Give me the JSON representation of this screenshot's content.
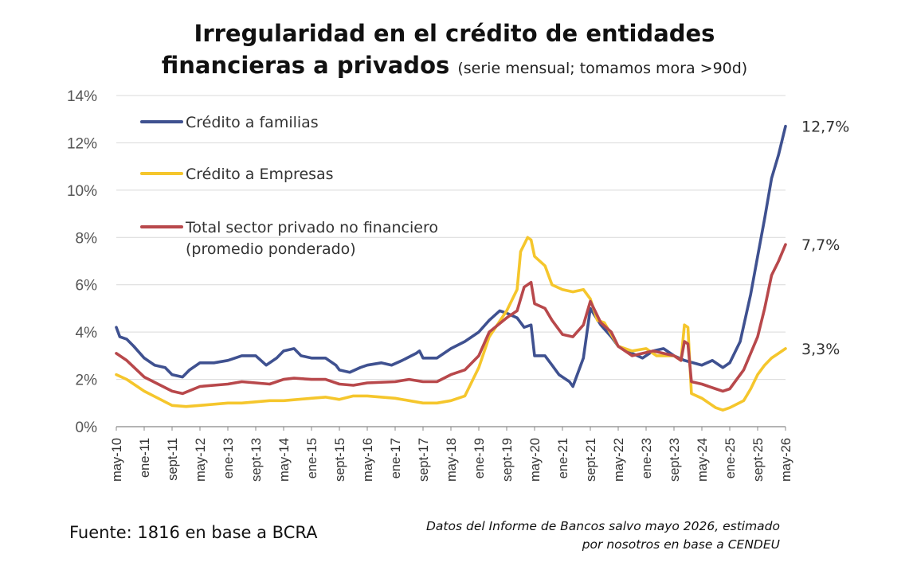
{
  "header": {
    "title_line1": "Irregularidad en el crédito de entidades",
    "title_line2": "financieras a privados",
    "subtitle": "(serie mensual; tomamos mora >90d)"
  },
  "footer": {
    "source": "Fuente: 1816 en base a BCRA",
    "note_line1": "Datos del Informe de Bancos salvo mayo 2026, estimado",
    "note_line2": "por nosotros en base a CENDEU"
  },
  "chart_data": {
    "type": "line",
    "x_start": "may-10",
    "x_end": "may-26",
    "y_ticks": [
      "0%",
      "2%",
      "4%",
      "6%",
      "8%",
      "10%",
      "12%",
      "14%"
    ],
    "ylim": [
      0,
      14
    ],
    "x_tick_labels": [
      "may-10",
      "ene-11",
      "sept-11",
      "may-12",
      "ene-13",
      "sept-13",
      "may-14",
      "ene-15",
      "sept-15",
      "may-16",
      "ene-17",
      "sept-17",
      "may-18",
      "ene-19",
      "sept-19",
      "may-20",
      "ene-21",
      "sept-21",
      "may-22",
      "ene-23",
      "sept-23",
      "may-24",
      "ene-25",
      "sept-25",
      "may-26"
    ],
    "grid": "horizontal",
    "legend_placement": "top-left",
    "series": [
      {
        "name": "Crédito a familias",
        "color": "#3f5190",
        "end_label": "12,7%",
        "points": [
          [
            "may-10",
            4.2
          ],
          [
            "jun-10",
            3.8
          ],
          [
            "ago-10",
            3.7
          ],
          [
            "oct-10",
            3.4
          ],
          [
            "ene-11",
            2.9
          ],
          [
            "abr-11",
            2.6
          ],
          [
            "jul-11",
            2.5
          ],
          [
            "sept-11",
            2.2
          ],
          [
            "dic-11",
            2.1
          ],
          [
            "feb-12",
            2.4
          ],
          [
            "may-12",
            2.7
          ],
          [
            "sept-12",
            2.7
          ],
          [
            "ene-13",
            2.8
          ],
          [
            "may-13",
            3.0
          ],
          [
            "sept-13",
            3.0
          ],
          [
            "dic-13",
            2.6
          ],
          [
            "mar-14",
            2.9
          ],
          [
            "may-14",
            3.2
          ],
          [
            "ago-14",
            3.3
          ],
          [
            "oct-14",
            3.0
          ],
          [
            "ene-15",
            2.9
          ],
          [
            "may-15",
            2.9
          ],
          [
            "ago-15",
            2.6
          ],
          [
            "sept-15",
            2.4
          ],
          [
            "dic-15",
            2.3
          ],
          [
            "mar-16",
            2.5
          ],
          [
            "may-16",
            2.6
          ],
          [
            "sept-16",
            2.7
          ],
          [
            "dic-16",
            2.6
          ],
          [
            "mar-17",
            2.8
          ],
          [
            "jul-17",
            3.1
          ],
          [
            "ago-17",
            3.2
          ],
          [
            "sept-17",
            2.9
          ],
          [
            "ene-18",
            2.9
          ],
          [
            "may-18",
            3.3
          ],
          [
            "sept-18",
            3.6
          ],
          [
            "ene-19",
            4.0
          ],
          [
            "abr-19",
            4.5
          ],
          [
            "jul-19",
            4.9
          ],
          [
            "sept-19",
            4.8
          ],
          [
            "dic-19",
            4.6
          ],
          [
            "feb-20",
            4.2
          ],
          [
            "abr-20",
            4.3
          ],
          [
            "may-20",
            3.0
          ],
          [
            "ago-20",
            3.0
          ],
          [
            "oct-20",
            2.6
          ],
          [
            "dic-20",
            2.2
          ],
          [
            "mar-21",
            1.9
          ],
          [
            "abr-21",
            1.7
          ],
          [
            "jul-21",
            2.9
          ],
          [
            "sept-21",
            5.0
          ],
          [
            "dic-21",
            4.3
          ],
          [
            "mar-22",
            3.8
          ],
          [
            "may-22",
            3.4
          ],
          [
            "sept-22",
            3.1
          ],
          [
            "dic-22",
            2.9
          ],
          [
            "mar-23",
            3.2
          ],
          [
            "jun-23",
            3.3
          ],
          [
            "sept-23",
            3.0
          ],
          [
            "dic-23",
            2.8
          ],
          [
            "may-24",
            2.6
          ],
          [
            "ago-24",
            2.8
          ],
          [
            "nov-24",
            2.5
          ],
          [
            "ene-25",
            2.7
          ],
          [
            "abr-25",
            3.6
          ],
          [
            "jul-25",
            5.6
          ],
          [
            "sept-25",
            7.2
          ],
          [
            "nov-25",
            8.8
          ],
          [
            "ene-26",
            10.5
          ],
          [
            "mar-26",
            11.5
          ],
          [
            "may-26",
            12.7
          ]
        ]
      },
      {
        "name": "Crédito a Empresas",
        "color": "#f5c62c",
        "end_label": "3,3%",
        "points": [
          [
            "may-10",
            2.2
          ],
          [
            "ago-10",
            2.0
          ],
          [
            "ene-11",
            1.5
          ],
          [
            "may-11",
            1.2
          ],
          [
            "sept-11",
            0.9
          ],
          [
            "ene-12",
            0.85
          ],
          [
            "may-12",
            0.9
          ],
          [
            "ene-13",
            1.0
          ],
          [
            "may-13",
            1.0
          ],
          [
            "ene-14",
            1.1
          ],
          [
            "may-14",
            1.1
          ],
          [
            "ene-15",
            1.2
          ],
          [
            "may-15",
            1.25
          ],
          [
            "sept-15",
            1.15
          ],
          [
            "ene-16",
            1.3
          ],
          [
            "may-16",
            1.3
          ],
          [
            "ene-17",
            1.2
          ],
          [
            "may-17",
            1.1
          ],
          [
            "sept-17",
            1.0
          ],
          [
            "ene-18",
            1.0
          ],
          [
            "may-18",
            1.1
          ],
          [
            "sept-18",
            1.3
          ],
          [
            "oct-18",
            1.6
          ],
          [
            "ene-19",
            2.5
          ],
          [
            "abr-19",
            3.8
          ],
          [
            "sept-19",
            4.9
          ],
          [
            "dic-19",
            5.8
          ],
          [
            "ene-20",
            7.4
          ],
          [
            "mar-20",
            8.0
          ],
          [
            "abr-20",
            7.9
          ],
          [
            "may-20",
            7.2
          ],
          [
            "ago-20",
            6.8
          ],
          [
            "oct-20",
            6.0
          ],
          [
            "ene-21",
            5.8
          ],
          [
            "abr-21",
            5.7
          ],
          [
            "jul-21",
            5.8
          ],
          [
            "sept-21",
            5.4
          ],
          [
            "nov-21",
            4.5
          ],
          [
            "ene-22",
            4.4
          ],
          [
            "may-22",
            3.4
          ],
          [
            "sept-22",
            3.2
          ],
          [
            "ene-23",
            3.3
          ],
          [
            "abr-23",
            3.0
          ],
          [
            "jun-23",
            3.0
          ],
          [
            "sept-23",
            3.0
          ],
          [
            "nov-23",
            2.8
          ],
          [
            "dic-23",
            4.3
          ],
          [
            "ene-24",
            4.2
          ],
          [
            "feb-24",
            1.4
          ],
          [
            "may-24",
            1.2
          ],
          [
            "sept-24",
            0.8
          ],
          [
            "nov-24",
            0.7
          ],
          [
            "ene-25",
            0.8
          ],
          [
            "may-25",
            1.1
          ],
          [
            "jul-25",
            1.6
          ],
          [
            "sept-25",
            2.2
          ],
          [
            "nov-25",
            2.6
          ],
          [
            "ene-26",
            2.9
          ],
          [
            "mar-26",
            3.1
          ],
          [
            "may-26",
            3.3
          ]
        ]
      },
      {
        "name": "Total sector privado no financiero",
        "name_line2": "(promedio ponderado)",
        "color": "#b8484b",
        "end_label": "7,7%",
        "points": [
          [
            "may-10",
            3.1
          ],
          [
            "ago-10",
            2.8
          ],
          [
            "ene-11",
            2.1
          ],
          [
            "may-11",
            1.8
          ],
          [
            "sept-11",
            1.5
          ],
          [
            "dic-11",
            1.4
          ],
          [
            "may-12",
            1.7
          ],
          [
            "ene-13",
            1.8
          ],
          [
            "may-13",
            1.9
          ],
          [
            "ene-14",
            1.8
          ],
          [
            "may-14",
            2.0
          ],
          [
            "ago-14",
            2.05
          ],
          [
            "ene-15",
            2.0
          ],
          [
            "may-15",
            2.0
          ],
          [
            "sept-15",
            1.8
          ],
          [
            "ene-16",
            1.75
          ],
          [
            "may-16",
            1.85
          ],
          [
            "ene-17",
            1.9
          ],
          [
            "may-17",
            2.0
          ],
          [
            "sept-17",
            1.9
          ],
          [
            "ene-18",
            1.9
          ],
          [
            "may-18",
            2.2
          ],
          [
            "sept-18",
            2.4
          ],
          [
            "ene-19",
            3.0
          ],
          [
            "abr-19",
            4.0
          ],
          [
            "sept-19",
            4.6
          ],
          [
            "dic-19",
            4.9
          ],
          [
            "feb-20",
            5.9
          ],
          [
            "abr-20",
            6.1
          ],
          [
            "may-20",
            5.2
          ],
          [
            "ago-20",
            5.0
          ],
          [
            "oct-20",
            4.5
          ],
          [
            "ene-21",
            3.9
          ],
          [
            "abr-21",
            3.8
          ],
          [
            "jul-21",
            4.3
          ],
          [
            "sept-21",
            5.3
          ],
          [
            "dic-21",
            4.4
          ],
          [
            "mar-22",
            4.0
          ],
          [
            "may-22",
            3.4
          ],
          [
            "sept-22",
            3.0
          ],
          [
            "dic-22",
            3.1
          ],
          [
            "mar-23",
            3.2
          ],
          [
            "jun-23",
            3.1
          ],
          [
            "sept-23",
            3.0
          ],
          [
            "nov-23",
            2.8
          ],
          [
            "dic-23",
            3.6
          ],
          [
            "ene-24",
            3.5
          ],
          [
            "feb-24",
            1.9
          ],
          [
            "may-24",
            1.8
          ],
          [
            "sept-24",
            1.6
          ],
          [
            "nov-24",
            1.5
          ],
          [
            "ene-25",
            1.6
          ],
          [
            "may-25",
            2.4
          ],
          [
            "sept-25",
            3.8
          ],
          [
            "nov-25",
            5.0
          ],
          [
            "ene-26",
            6.4
          ],
          [
            "mar-26",
            7.0
          ],
          [
            "may-26",
            7.7
          ]
        ]
      }
    ]
  }
}
